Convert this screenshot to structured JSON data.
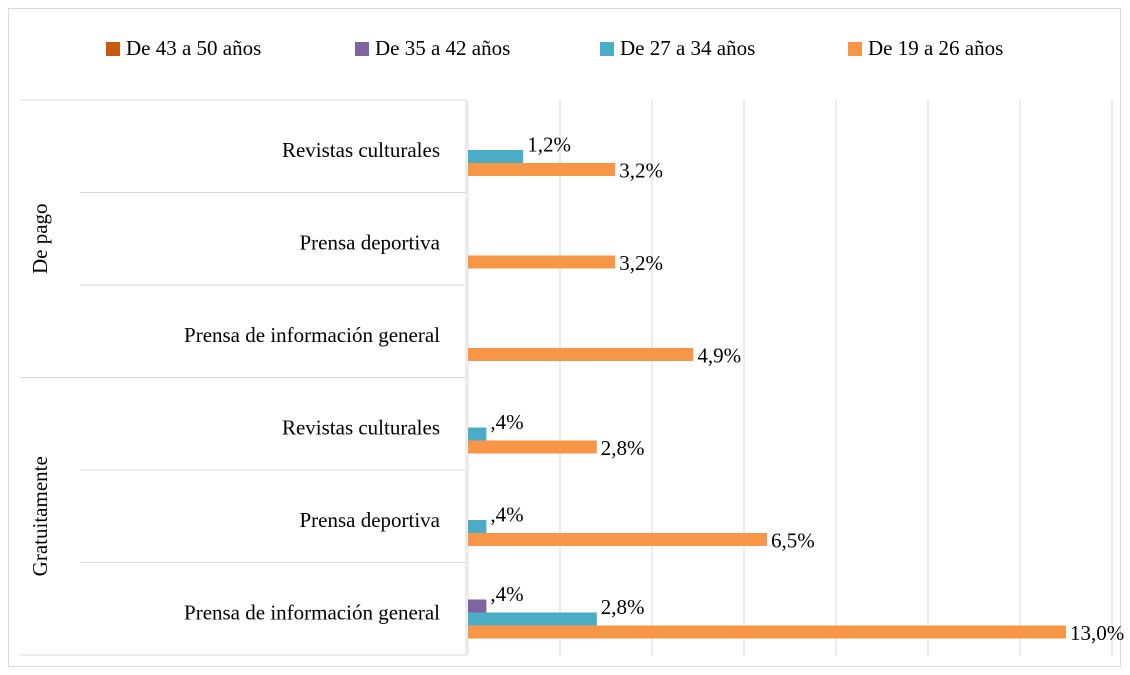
{
  "chart_data": {
    "type": "bar",
    "orientation": "horizontal",
    "groups": [
      {
        "name": "De pago",
        "categories": [
          "Revistas culturales",
          "Prensa deportiva",
          "Prensa de información general"
        ]
      },
      {
        "name": "Gratuitamente",
        "categories": [
          "Revistas culturales",
          "Prensa deportiva",
          "Prensa de información general"
        ]
      }
    ],
    "series": [
      {
        "name": "De 43 a 50 años",
        "color": "#c55a11",
        "values": [
          null,
          null,
          null,
          null,
          null,
          null
        ],
        "value_labels": [
          null,
          null,
          null,
          null,
          null,
          null
        ]
      },
      {
        "name": "De 35 a 42 años",
        "color": "#8064a2",
        "values": [
          null,
          null,
          null,
          null,
          null,
          0.4
        ],
        "value_labels": [
          null,
          null,
          null,
          null,
          null,
          ",4%"
        ]
      },
      {
        "name": "De 27 a 34 años",
        "color": "#4bacc6",
        "values": [
          1.2,
          null,
          null,
          0.4,
          0.4,
          2.8
        ],
        "value_labels": [
          "1,2%",
          null,
          null,
          ",4%",
          ",4%",
          "2,8%"
        ]
      },
      {
        "name": "De 19 a 26 años",
        "color": "#f79646",
        "values": [
          3.2,
          3.2,
          4.9,
          2.8,
          6.5,
          13.0
        ],
        "value_labels": [
          "3,2%",
          "3,2%",
          "4,9%",
          "2,8%",
          "6,5%",
          "13,0%"
        ]
      }
    ],
    "xlim": [
      0,
      14
    ],
    "xticks": [
      0,
      2,
      4,
      6,
      8,
      10,
      12,
      14
    ],
    "grid": true,
    "legend": "top"
  }
}
